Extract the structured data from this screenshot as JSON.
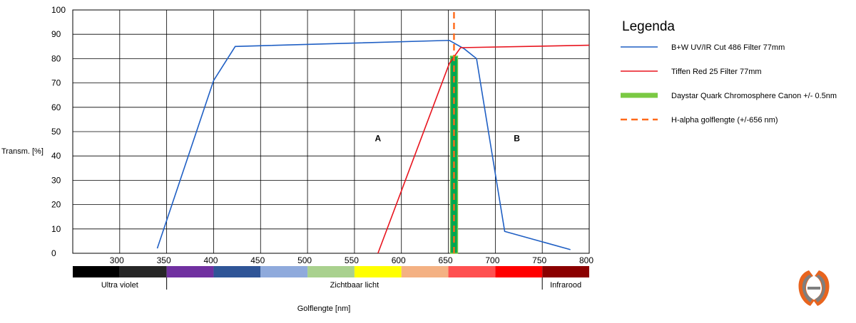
{
  "chart_data": {
    "type": "line",
    "ylabel": "Transm.  [%]",
    "xlabel": "Golflengte [nm]",
    "xlim": [
      250,
      800
    ],
    "ylim": [
      0,
      100
    ],
    "grid": true,
    "x_ticks": [
      300,
      350,
      400,
      450,
      500,
      550,
      600,
      650,
      700,
      750,
      800
    ],
    "y_ticks": [
      0,
      10,
      20,
      30,
      40,
      50,
      60,
      70,
      80,
      90,
      100
    ],
    "series": [
      {
        "name": "B+W UV/IR Cut 486 Filter 77mm",
        "color": "#1f5fc4",
        "style": "solid",
        "x": [
          340,
          400,
          423,
          651,
          667,
          680,
          710,
          780
        ],
        "y": [
          2,
          71,
          85,
          87.5,
          84,
          80,
          9,
          1.5
        ]
      },
      {
        "name": "Tiffen Red 25 Filter 77mm",
        "color": "#e8141e",
        "style": "solid",
        "x": [
          575,
          651,
          663,
          800
        ],
        "y": [
          0,
          78,
          84.5,
          85.5
        ]
      },
      {
        "name": "Daystar Quark Chromosphere Canon +/- 0.5nm",
        "color": "#7ac943",
        "style": "band",
        "x": [
          656,
          656
        ],
        "y": [
          0,
          81
        ]
      },
      {
        "name": "H-alpha golflengte (+/-656 nm)",
        "color": "#ff6a1a",
        "style": "dashed",
        "x": [
          656,
          656
        ],
        "y": [
          0,
          100
        ]
      }
    ],
    "annotations": [
      {
        "text": "A",
        "x": 575,
        "y": 46
      },
      {
        "text": "B",
        "x": 723,
        "y": 46
      }
    ],
    "spectrum": [
      {
        "from": 250,
        "to": 300,
        "color": "#000000"
      },
      {
        "from": 300,
        "to": 350,
        "color": "#262626"
      },
      {
        "from": 350,
        "to": 400,
        "color": "#7030a0"
      },
      {
        "from": 400,
        "to": 450,
        "color": "#2f5597"
      },
      {
        "from": 450,
        "to": 500,
        "color": "#8faadc"
      },
      {
        "from": 500,
        "to": 550,
        "color": "#a9d18e"
      },
      {
        "from": 550,
        "to": 600,
        "color": "#ffff00"
      },
      {
        "from": 600,
        "to": 650,
        "color": "#f4b183"
      },
      {
        "from": 650,
        "to": 700,
        "color": "#ff5050"
      },
      {
        "from": 700,
        "to": 750,
        "color": "#ff0000"
      },
      {
        "from": 750,
        "to": 800,
        "color": "#8b0000"
      }
    ],
    "regions": [
      {
        "label": "Ultra violet",
        "from": 250,
        "to": 350
      },
      {
        "label": "Zichtbaar licht",
        "from": 350,
        "to": 750
      },
      {
        "label": "Infrarood",
        "from": 750,
        "to": 800
      }
    ],
    "legend": {
      "title": "Legenda",
      "placement": "right"
    }
  },
  "logo": {
    "icon": "brand-logo-icon",
    "colors": [
      "#e8641e",
      "#7f7f7f"
    ]
  }
}
